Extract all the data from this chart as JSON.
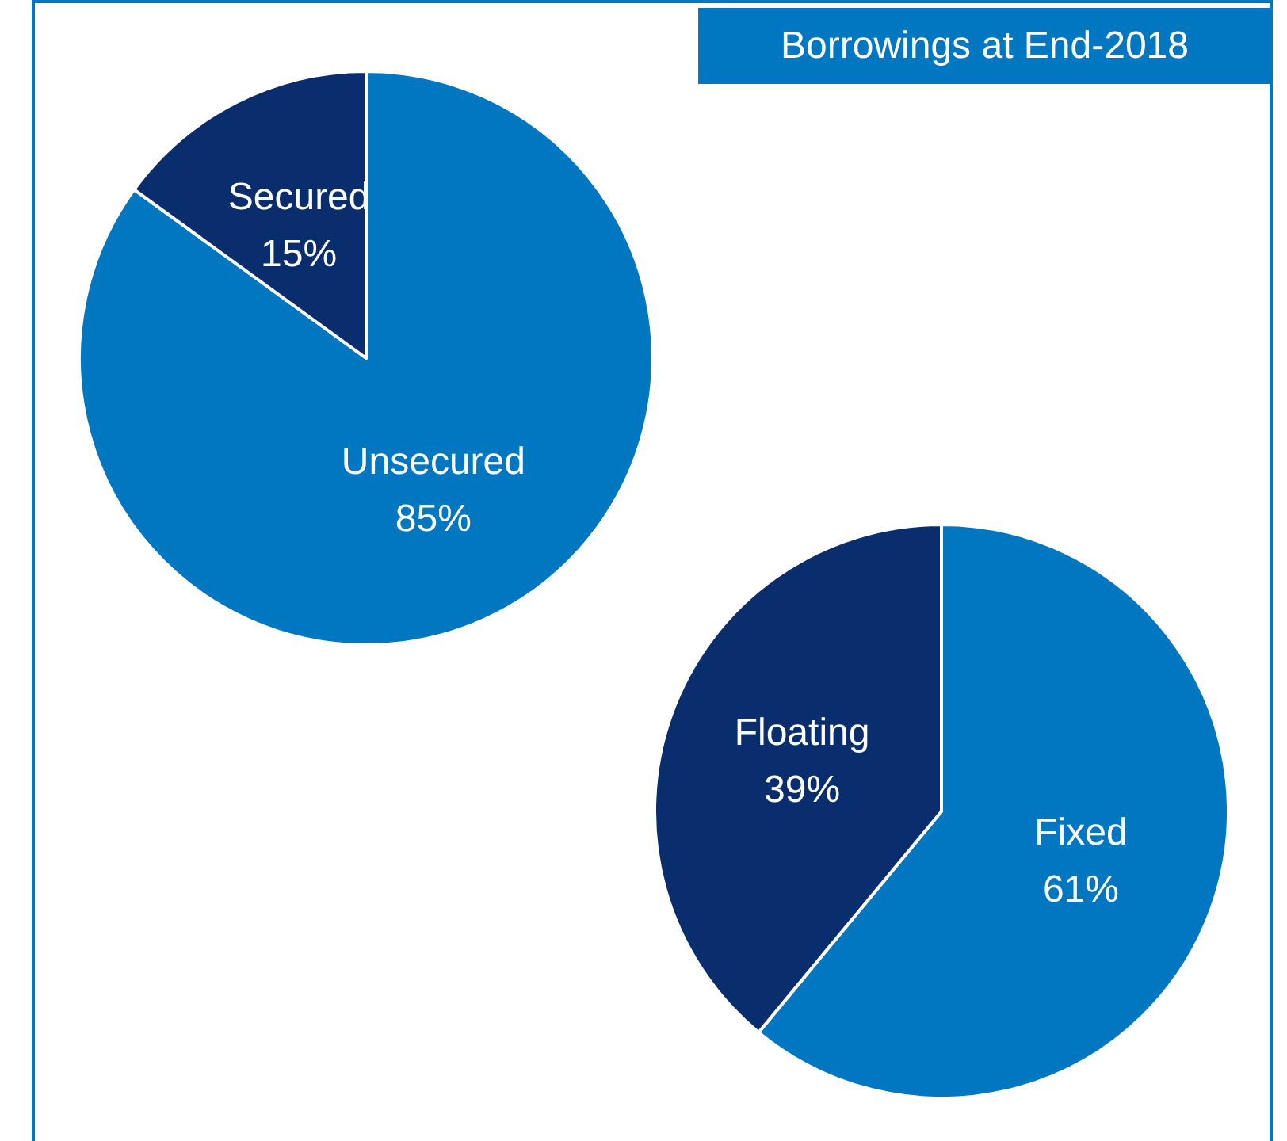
{
  "chart_data": [
    {
      "type": "pie",
      "title": "Borrowings at End-2018",
      "categories": [
        "Unsecured",
        "Secured"
      ],
      "values": [
        85,
        15
      ],
      "value_labels": [
        "85%",
        "15%"
      ],
      "colors": [
        "#0077c0",
        "#0a2d6e"
      ]
    },
    {
      "type": "pie",
      "categories": [
        "Fixed",
        "Floating"
      ],
      "values": [
        61,
        39
      ],
      "value_labels": [
        "61%",
        "39%"
      ],
      "colors": [
        "#0077c0",
        "#0a2d6e"
      ]
    }
  ]
}
